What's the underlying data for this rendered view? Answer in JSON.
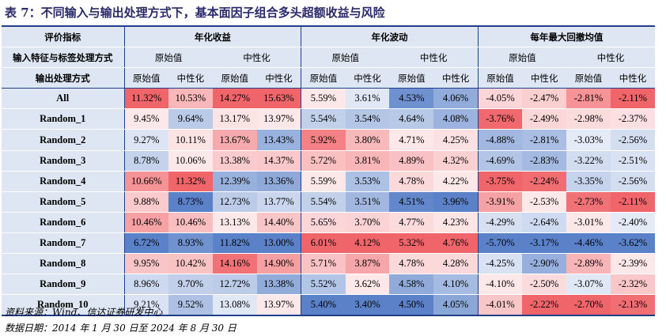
{
  "title": "表 7：不同输入与输出处理方式下，基本面因子组合多头超额收益与风险",
  "header": {
    "row1": {
      "label": "评价指标",
      "groups": [
        "年化收益",
        "年化波动",
        "每年最大回撤均值"
      ]
    },
    "row2": {
      "label": "输入特征与标签处理方式",
      "values": [
        "原始值",
        "中性化",
        "原始值",
        "中性化",
        "原始值",
        "中性化"
      ]
    },
    "row3": {
      "label": "输出处理方式",
      "values": [
        "原始值",
        "中性化",
        "原始值",
        "中性化",
        "原始值",
        "中性化",
        "原始值",
        "中性化",
        "原始值",
        "中性化",
        "原始值",
        "中性化"
      ]
    }
  },
  "rows": [
    {
      "label": "All",
      "values": [
        "11.32%",
        "10.53%",
        "14.27%",
        "15.63%",
        "5.59%",
        "3.61%",
        "4.53%",
        "4.06%",
        "-4.05%",
        "-2.47%",
        "-2.81%",
        "-2.11%"
      ]
    },
    {
      "label": "Random_1",
      "values": [
        "9.45%",
        "9.64%",
        "13.17%",
        "13.97%",
        "5.54%",
        "3.54%",
        "4.64%",
        "4.08%",
        "-3.76%",
        "-2.49%",
        "-2.98%",
        "-2.37%"
      ]
    },
    {
      "label": "Random_2",
      "values": [
        "9.27%",
        "10.11%",
        "13.67%",
        "13.43%",
        "5.92%",
        "3.80%",
        "4.71%",
        "4.25%",
        "-4.88%",
        "-2.81%",
        "-3.03%",
        "-2.56%"
      ]
    },
    {
      "label": "Random_3",
      "values": [
        "8.78%",
        "10.06%",
        "13.38%",
        "14.37%",
        "5.72%",
        "3.81%",
        "4.89%",
        "4.32%",
        "-4.69%",
        "-2.83%",
        "-3.22%",
        "-2.51%"
      ]
    },
    {
      "label": "Random_4",
      "values": [
        "10.66%",
        "11.32%",
        "12.39%",
        "13.36%",
        "5.59%",
        "3.53%",
        "4.78%",
        "4.22%",
        "-3.75%",
        "-2.24%",
        "-3.35%",
        "-2.56%"
      ]
    },
    {
      "label": "Random_5",
      "values": [
        "9.88%",
        "8.73%",
        "12.73%",
        "13.77%",
        "5.54%",
        "3.51%",
        "4.51%",
        "3.96%",
        "-3.91%",
        "-2.53%",
        "-2.73%",
        "-2.11%"
      ]
    },
    {
      "label": "Random_6",
      "values": [
        "10.46%",
        "10.46%",
        "13.13%",
        "14.40%",
        "5.65%",
        "3.70%",
        "4.77%",
        "4.23%",
        "-4.29%",
        "-2.64%",
        "-3.01%",
        "-2.40%"
      ]
    },
    {
      "label": "Random_7",
      "values": [
        "6.72%",
        "8.93%",
        "11.82%",
        "13.00%",
        "6.01%",
        "4.12%",
        "5.32%",
        "4.76%",
        "-5.70%",
        "-3.17%",
        "-4.46%",
        "-3.62%"
      ]
    },
    {
      "label": "Random_8",
      "values": [
        "9.95%",
        "10.42%",
        "14.16%",
        "14.90%",
        "5.71%",
        "3.87%",
        "4.78%",
        "4.28%",
        "-4.25%",
        "-2.90%",
        "-2.89%",
        "-2.39%"
      ]
    },
    {
      "label": "Random_9",
      "values": [
        "8.96%",
        "9.70%",
        "12.72%",
        "13.38%",
        "5.52%",
        "3.62%",
        "4.58%",
        "4.10%",
        "-4.10%",
        "-2.50%",
        "-3.07%",
        "-2.32%"
      ]
    },
    {
      "label": "Random_10",
      "values": [
        "9.21%",
        "9.52%",
        "13.08%",
        "13.97%",
        "5.40%",
        "3.40%",
        "4.50%",
        "4.05%",
        "-4.01%",
        "-2.22%",
        "-2.70%",
        "-2.13%"
      ]
    }
  ],
  "footer": {
    "source": "资料来源：Wind、信达证券研发中心",
    "date": "数据日期：2014 年 1 月 30 日至 2024 年 8 月 30 日"
  },
  "colors": {
    "header_bg": "#dde6f2",
    "rule": "#1f3f8a",
    "blue_strong": "#5b82c8",
    "red_strong": "#f0656a",
    "neutral": "#ffffff"
  }
}
